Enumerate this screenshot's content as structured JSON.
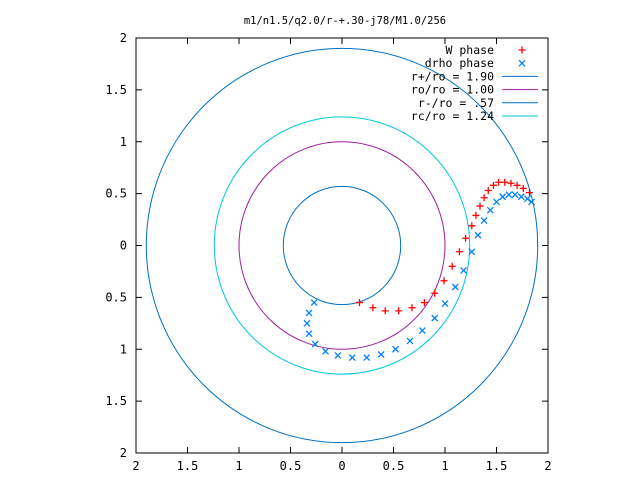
{
  "chart_data": {
    "type": "scatter",
    "title": "m1/n1.5/q2.0/r-+.30-j78/M1.0/256",
    "xlabel": "",
    "ylabel": "",
    "xlim": [
      -2,
      2
    ],
    "ylim": [
      -2,
      2
    ],
    "x_ticks": [
      "2",
      "1.5",
      "1",
      "0.5",
      "0",
      "0.5",
      "1",
      "1.5",
      "2"
    ],
    "y_ticks": [
      "2",
      "1.5",
      "1",
      "0.5",
      "0",
      "0.5",
      "1",
      "1.5",
      "2"
    ],
    "grid": false,
    "legend_position": "top-right",
    "series": [
      {
        "name": "W phase",
        "marker": "+",
        "color": "#ff0000",
        "x": [
          0.17,
          0.3,
          0.42,
          0.55,
          0.68,
          0.8,
          0.9,
          0.99,
          1.07,
          1.14,
          1.2,
          1.26,
          1.3,
          1.34,
          1.38,
          1.42,
          1.47,
          1.52,
          1.58,
          1.64,
          1.7,
          1.76,
          1.82
        ],
        "y": [
          -0.55,
          -0.6,
          -0.63,
          -0.63,
          -0.6,
          -0.55,
          -0.46,
          -0.34,
          -0.2,
          -0.06,
          0.07,
          0.19,
          0.29,
          0.38,
          0.46,
          0.53,
          0.58,
          0.61,
          0.61,
          0.6,
          0.58,
          0.55,
          0.51
        ]
      },
      {
        "name": "drho phase",
        "marker": "x",
        "color": "#0080ff",
        "x": [
          -0.27,
          -0.32,
          -0.34,
          -0.32,
          -0.26,
          -0.16,
          -0.04,
          0.1,
          0.24,
          0.38,
          0.52,
          0.66,
          0.78,
          0.9,
          1.0,
          1.1,
          1.18,
          1.26,
          1.32,
          1.38,
          1.44,
          1.5,
          1.56,
          1.62,
          1.68,
          1.74,
          1.8,
          1.84
        ],
        "y": [
          -0.55,
          -0.65,
          -0.75,
          -0.85,
          -0.95,
          -1.02,
          -1.06,
          -1.08,
          -1.08,
          -1.05,
          -1.0,
          -0.92,
          -0.82,
          -0.7,
          -0.56,
          -0.4,
          -0.24,
          -0.06,
          0.1,
          0.24,
          0.34,
          0.42,
          0.47,
          0.49,
          0.49,
          0.47,
          0.45,
          0.42
        ]
      }
    ],
    "circles": [
      {
        "name": "r+/ro = 1.90",
        "radius": 1.9,
        "color": "#0070c0"
      },
      {
        "name": "ro/ro = 1.00",
        "radius": 1.0,
        "color": "#a020a0"
      },
      {
        "name": "r-/ro = .57",
        "radius": 0.57,
        "color": "#0070c0"
      },
      {
        "name": "rc/ro = 1.24",
        "radius": 1.24,
        "color": "#00c8d8"
      }
    ]
  }
}
